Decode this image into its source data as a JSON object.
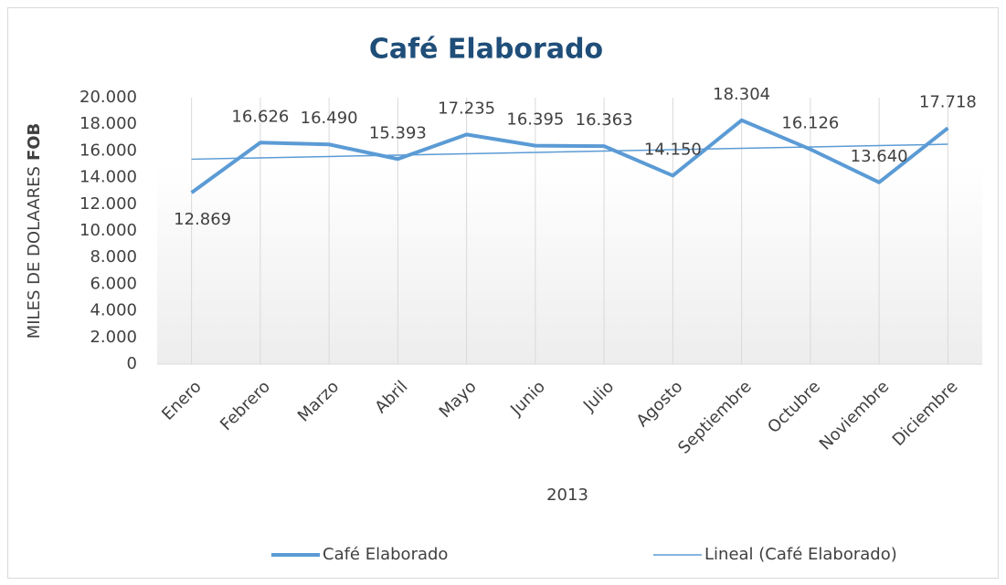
{
  "chart_data": {
    "type": "line",
    "title": "Café Elaborado",
    "y_label": [
      "MILES DE DOLAARES",
      "FOB"
    ],
    "x_label": "2013",
    "categories": [
      "Enero",
      "Febrero",
      "Marzo",
      "Abril",
      "Mayo",
      "Junio",
      "Julio",
      "Agosto",
      "Septiembre",
      "Octubre",
      "Noviembre",
      "Diciembre"
    ],
    "series": [
      {
        "name": "Café Elaborado",
        "color": "#5b9bd5",
        "values": [
          12869,
          16626,
          16490,
          15393,
          17235,
          16395,
          16363,
          14150,
          18304,
          16126,
          13640,
          17718
        ],
        "value_labels": [
          "12.869",
          "16.626",
          "16.490",
          "15.393",
          "17.235",
          "16.395",
          "16.363",
          "14.150",
          "18.304",
          "16.126",
          "13.640",
          "17.718"
        ]
      },
      {
        "name": "Lineal (Café Elaborado)",
        "color": "#5b9bd5",
        "values": [
          15381,
          15483,
          15585,
          15687,
          15789,
          15891,
          15993,
          16095,
          16197,
          16299,
          16401,
          16504
        ]
      }
    ],
    "ylim": [
      0,
      20000
    ],
    "yticks": [
      0,
      {
        "value": 2000,
        "label": "2.000"
      },
      {
        "value": 4000,
        "label": "4.000"
      },
      {
        "value": 6000,
        "label": "6.000"
      },
      {
        "value": 8000,
        "label": "8.000"
      },
      {
        "value": 10000,
        "label": "10.000"
      },
      {
        "value": 12000,
        "label": "12.000"
      },
      {
        "value": 14000,
        "label": "14.000"
      },
      {
        "value": 16000,
        "label": "16.000"
      },
      {
        "value": 18000,
        "label": "18.000"
      },
      {
        "value": {
          "value": 20000
        },
        "label": "20.000"
      }
    ],
    "grid": true,
    "legend": "bottom"
  }
}
